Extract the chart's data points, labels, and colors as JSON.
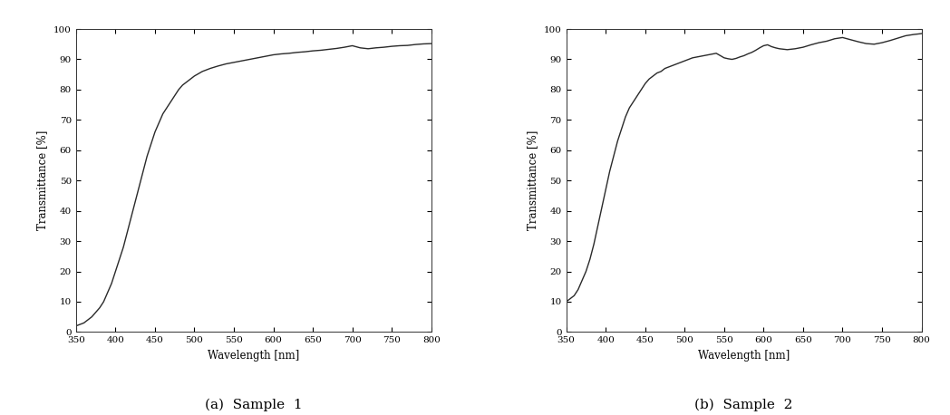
{
  "xlim": [
    350,
    800
  ],
  "ylim": [
    0,
    100
  ],
  "xticks": [
    350,
    400,
    450,
    500,
    550,
    600,
    650,
    700,
    750,
    800
  ],
  "yticks": [
    0,
    10,
    20,
    30,
    40,
    50,
    60,
    70,
    80,
    90,
    100
  ],
  "xlabel": "Wavelength [nm]",
  "ylabel": "Transmittance [%]",
  "line_color": "#2a2a2a",
  "line_width": 1.0,
  "background_color": "#ffffff",
  "caption_a": "(a)  Sample  1",
  "caption_b": "(b)  Sample  2",
  "caption_fontsize": 11,
  "sample1": {
    "x": [
      350,
      355,
      360,
      365,
      370,
      375,
      380,
      385,
      390,
      395,
      400,
      405,
      410,
      415,
      420,
      425,
      430,
      435,
      440,
      445,
      450,
      455,
      460,
      465,
      470,
      475,
      480,
      485,
      490,
      495,
      500,
      510,
      520,
      530,
      540,
      550,
      560,
      570,
      580,
      590,
      600,
      610,
      620,
      630,
      640,
      650,
      660,
      670,
      680,
      690,
      700,
      710,
      720,
      730,
      740,
      750,
      760,
      770,
      780,
      790,
      800
    ],
    "y": [
      2,
      2.5,
      3,
      4,
      5,
      6.5,
      8,
      10,
      13,
      16,
      20,
      24,
      28,
      33,
      38,
      43,
      48,
      53,
      58,
      62,
      66,
      69,
      72,
      74,
      76,
      78,
      80,
      81.5,
      82.5,
      83.5,
      84.5,
      86,
      87,
      87.8,
      88.5,
      89,
      89.5,
      90,
      90.5,
      91,
      91.5,
      91.8,
      92.0,
      92.3,
      92.5,
      92.8,
      93.0,
      93.3,
      93.6,
      94.0,
      94.5,
      93.8,
      93.5,
      93.8,
      94.0,
      94.3,
      94.5,
      94.6,
      94.9,
      95.1,
      95.2
    ]
  },
  "sample2": {
    "x": [
      350,
      355,
      360,
      365,
      370,
      375,
      380,
      385,
      390,
      395,
      400,
      405,
      410,
      415,
      420,
      425,
      430,
      435,
      440,
      445,
      450,
      455,
      460,
      465,
      470,
      475,
      480,
      485,
      490,
      495,
      500,
      510,
      520,
      530,
      540,
      550,
      555,
      560,
      565,
      570,
      575,
      580,
      585,
      590,
      595,
      600,
      605,
      610,
      615,
      620,
      630,
      640,
      650,
      660,
      670,
      680,
      690,
      700,
      710,
      720,
      730,
      740,
      750,
      760,
      770,
      780,
      790,
      800
    ],
    "y": [
      10,
      11,
      12,
      14,
      17,
      20,
      24,
      29,
      35,
      41,
      47,
      53,
      58,
      63,
      67,
      71,
      74,
      76,
      78,
      80,
      82,
      83.5,
      84.5,
      85.5,
      86,
      87,
      87.5,
      88,
      88.5,
      89,
      89.5,
      90.5,
      91,
      91.5,
      92,
      90.5,
      90.2,
      90.0,
      90.3,
      90.8,
      91.2,
      91.8,
      92.3,
      93.0,
      93.8,
      94.5,
      94.8,
      94.2,
      93.8,
      93.5,
      93.2,
      93.5,
      94.0,
      94.8,
      95.5,
      96.0,
      96.8,
      97.2,
      96.5,
      95.8,
      95.2,
      95.0,
      95.5,
      96.2,
      97.0,
      97.8,
      98.2,
      98.5
    ]
  }
}
